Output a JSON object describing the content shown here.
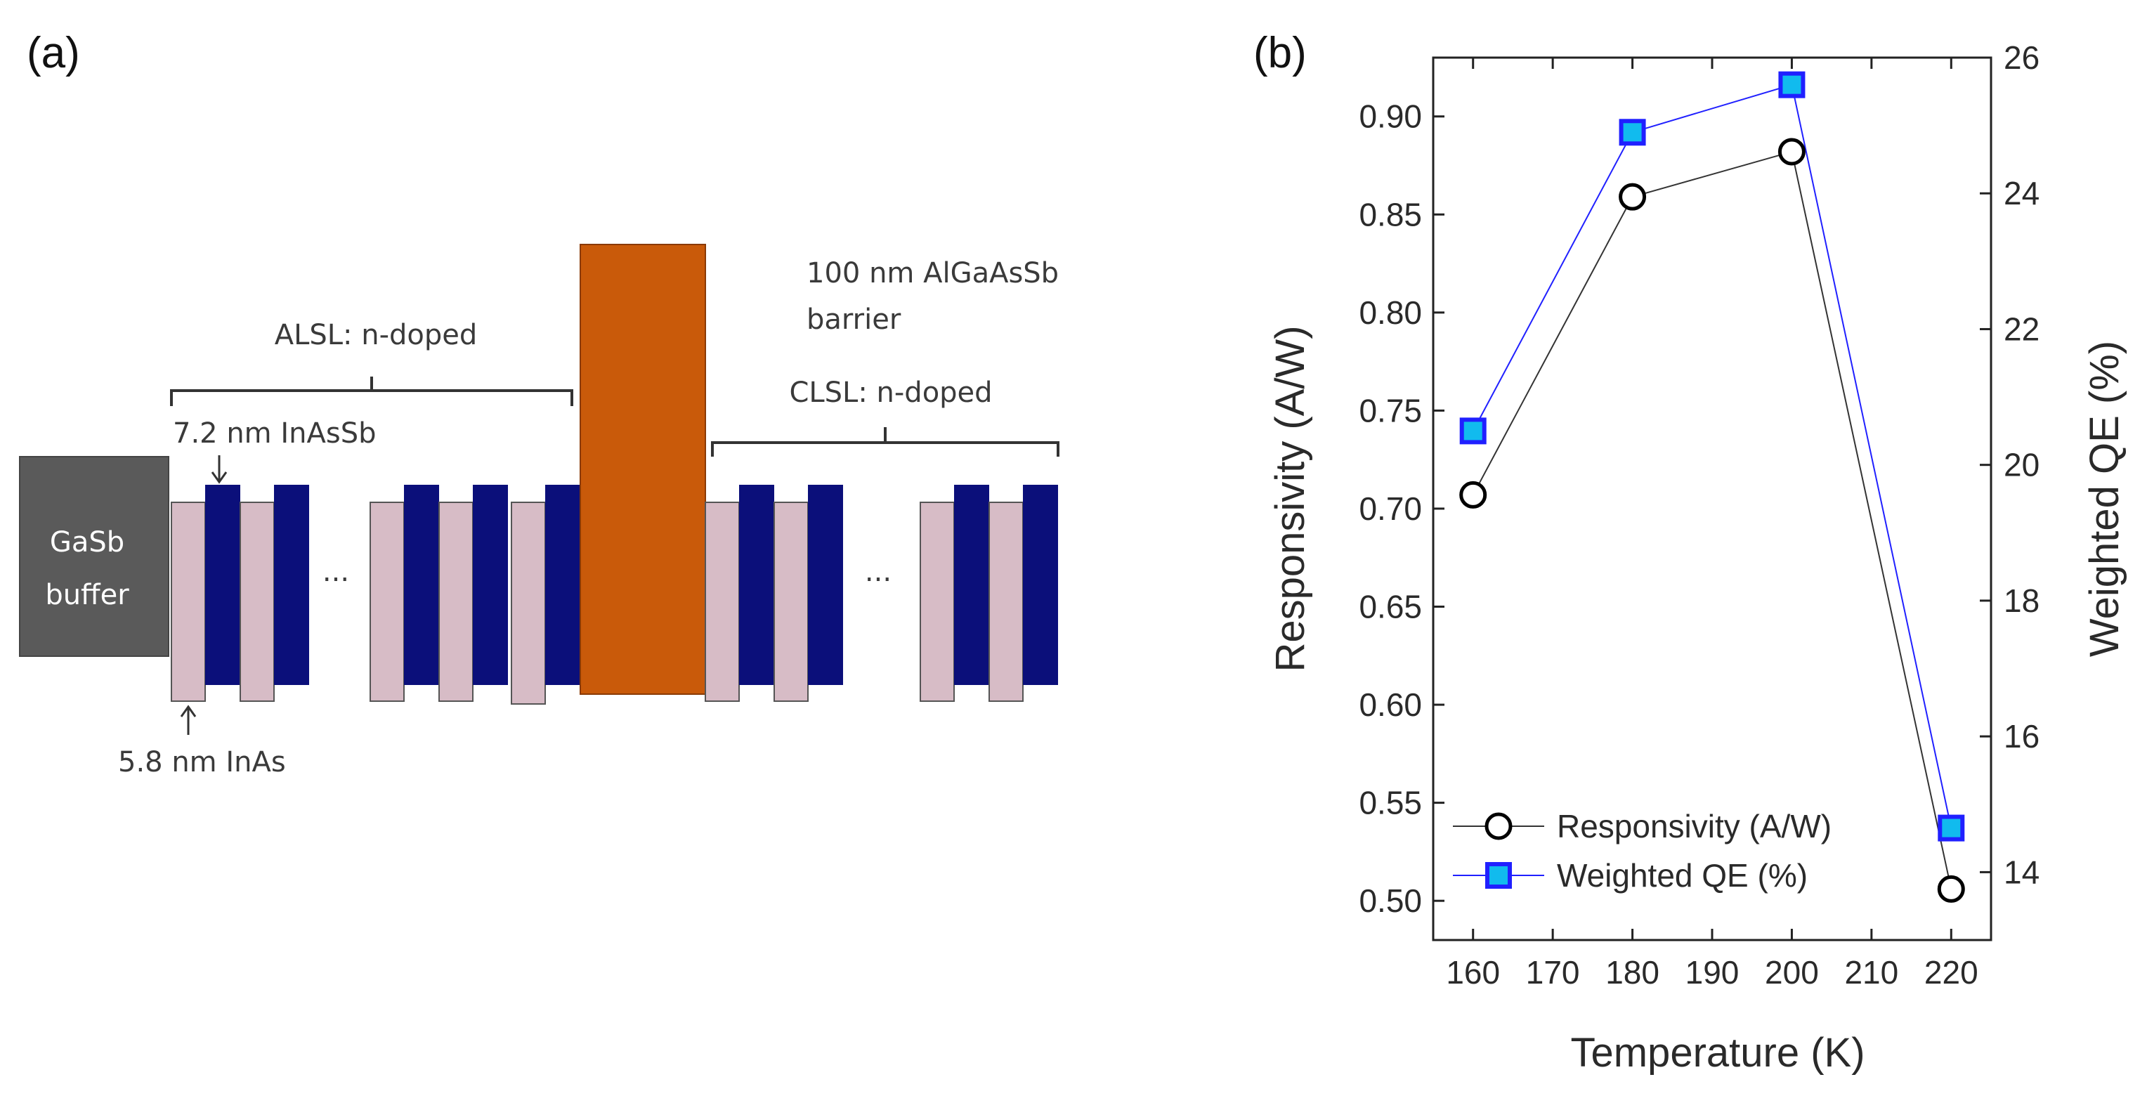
{
  "panel_a": {
    "label": "(a)",
    "buffer_line1": "GaSb",
    "buffer_line2": "buffer",
    "alsl_label": "ALSL: n-doped",
    "clsl_label": "CLSL: n-doped",
    "barrier_line1": "100 nm AlGaAsSb",
    "barrier_line2": "barrier",
    "inassb_label": "7.2 nm InAsSb",
    "inas_label": "5.8 nm InAs",
    "ellipsis": "...",
    "colors": {
      "buffer": "#5a5a5a",
      "inas": "#d7bcc6",
      "inassb": "#0b0f7a",
      "barrier": "#c95a0a"
    }
  },
  "panel_b": {
    "label": "(b)"
  },
  "chart_data": {
    "type": "line",
    "x": [
      160,
      180,
      200,
      220
    ],
    "series": [
      {
        "name": "Responsivity (A/W)",
        "axis": "left",
        "values": [
          0.707,
          0.859,
          0.882,
          0.506
        ],
        "marker": "open-circle",
        "color": "#000000"
      },
      {
        "name": "Weighted QE (%)",
        "axis": "right",
        "values": [
          20.5,
          24.9,
          25.6,
          14.65
        ],
        "marker": "square",
        "color": "#2020ff",
        "marker_fill": "#11bbee"
      }
    ],
    "xlabel": "Temperature (K)",
    "ylabel": "Responsivity (A/W)",
    "ylabel_right": "Weighted QE (%)",
    "xlim": [
      155,
      225
    ],
    "ylim": [
      0.48,
      0.93
    ],
    "ylim_right": [
      13,
      26
    ],
    "xticks": [
      160,
      170,
      180,
      190,
      200,
      210,
      220
    ],
    "yticks": [
      0.5,
      0.55,
      0.6,
      0.65,
      0.7,
      0.75,
      0.8,
      0.85,
      0.9
    ],
    "yticks_right": [
      14,
      16,
      18,
      20,
      22,
      24,
      26
    ],
    "legend": [
      "Responsivity (A/W)",
      "Weighted QE (%)"
    ],
    "legend_position": "bottom-left"
  }
}
